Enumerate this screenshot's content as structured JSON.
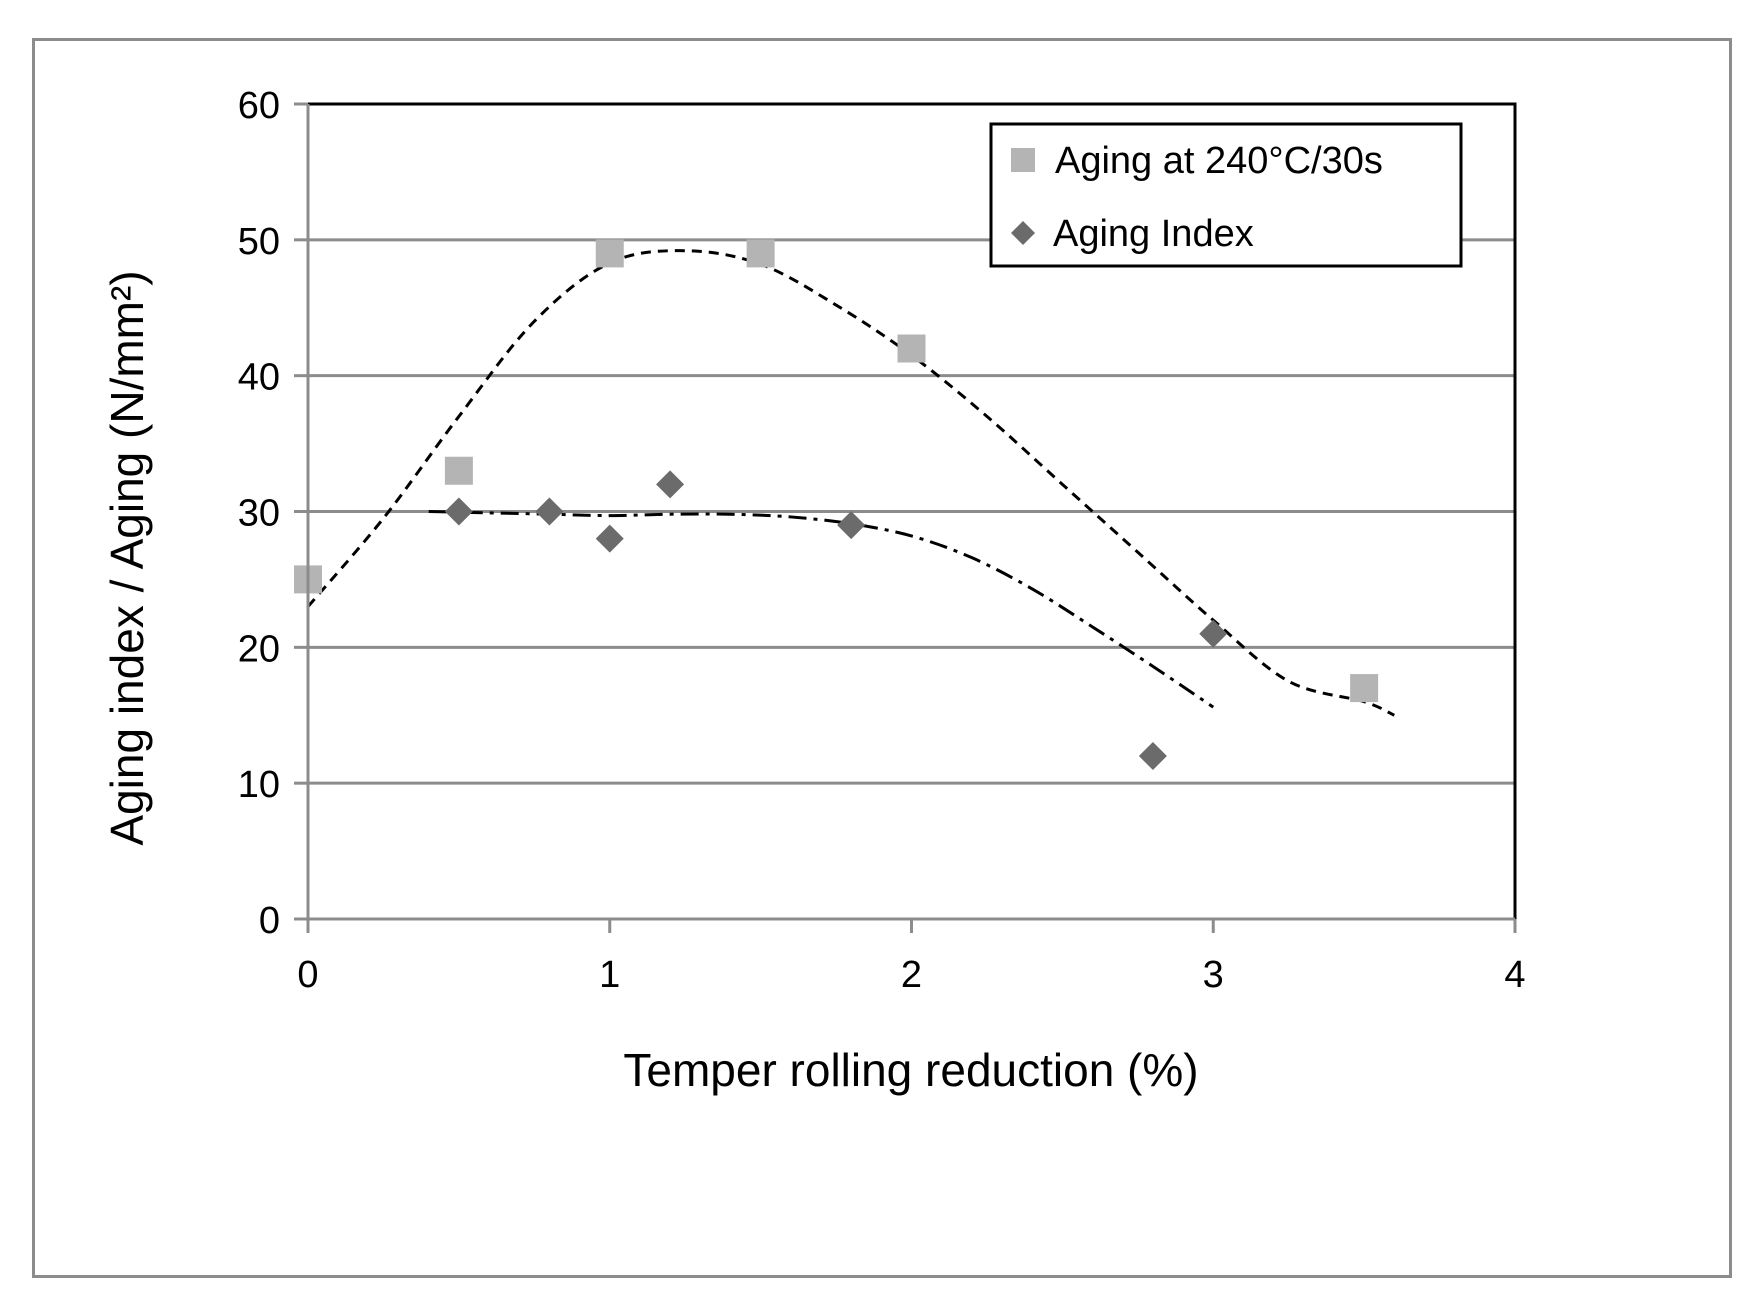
{
  "chart_data": {
    "type": "scatter",
    "xlabel": "Temper rolling reduction (%)",
    "ylabel": "Aging index / Aging (N/mm²)",
    "xlim": [
      0,
      4
    ],
    "ylim": [
      0,
      60
    ],
    "xticks": [
      "0",
      "1",
      "2",
      "3",
      "4"
    ],
    "yticks": [
      "0",
      "10",
      "20",
      "30",
      "40",
      "50",
      "60"
    ],
    "grid": "horizontal",
    "legend_position": "top-right",
    "series": [
      {
        "name": "Aging at 240°C/30s",
        "marker": "square",
        "color": "#b4b4b4",
        "x": [
          0,
          0.5,
          1.0,
          1.5,
          2.0,
          3.5
        ],
        "y": [
          25,
          33,
          49,
          49,
          42,
          17
        ],
        "trendline": {
          "style": "dashed",
          "x": [
            0,
            0.25,
            0.5,
            0.75,
            1.0,
            1.25,
            1.5,
            1.75,
            2.0,
            2.25,
            2.5,
            2.75,
            3.0,
            3.25,
            3.5,
            3.6
          ],
          "y": [
            23,
            29.5,
            37,
            44,
            48.3,
            49.2,
            48.2,
            45.2,
            41.5,
            37,
            32,
            27,
            22,
            17.5,
            16,
            15
          ]
        }
      },
      {
        "name": "Aging Index",
        "marker": "diamond",
        "color": "#6b6b6b",
        "x": [
          0.5,
          0.8,
          1.0,
          1.2,
          1.8,
          2.8,
          3.0
        ],
        "y": [
          30,
          30,
          28,
          32,
          29,
          12,
          21
        ],
        "trendline": {
          "style": "dash-dot",
          "x": [
            0.4,
            0.6,
            0.8,
            1.0,
            1.2,
            1.4,
            1.6,
            1.8,
            2.0,
            2.2,
            2.4,
            2.6,
            2.8,
            3.0
          ],
          "y": [
            30,
            29.9,
            29.8,
            29.7,
            29.8,
            29.8,
            29.6,
            29.1,
            28.2,
            26.6,
            24.3,
            21.5,
            18.6,
            15.6
          ]
        }
      }
    ]
  }
}
